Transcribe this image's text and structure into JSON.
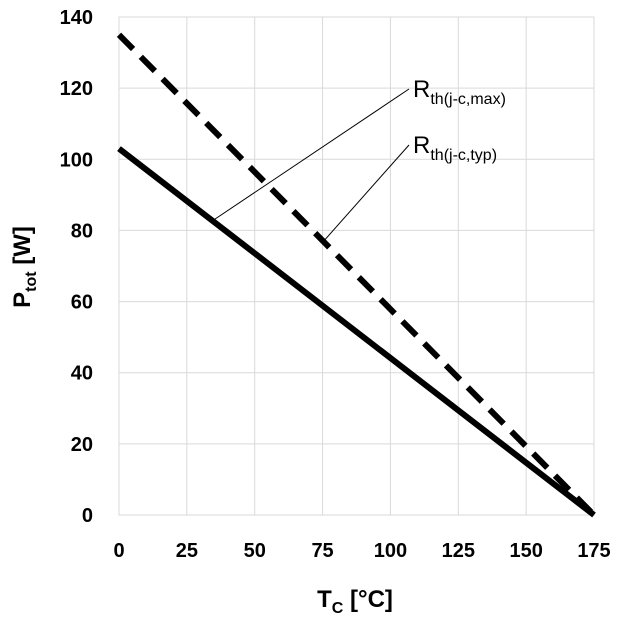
{
  "chart_data": {
    "type": "line",
    "x_axis": {
      "label_main": "T",
      "label_sub": "C",
      "label_unit": " [°C]",
      "range": [
        0,
        175
      ],
      "ticks": [
        0,
        25,
        50,
        75,
        100,
        125,
        150,
        175
      ]
    },
    "y_axis": {
      "label_main": "P",
      "label_sub": "tot",
      "label_unit": " [W]",
      "range": [
        0,
        140
      ],
      "ticks": [
        0,
        20,
        40,
        60,
        80,
        100,
        120,
        140
      ]
    },
    "grid": true,
    "series": [
      {
        "id": "max",
        "style": "dashed",
        "color": "#000000",
        "x": [
          0,
          175
        ],
        "y": [
          135,
          0
        ]
      },
      {
        "id": "typ",
        "style": "solid",
        "color": "#000000",
        "x": [
          0,
          175
        ],
        "y": [
          103,
          0
        ]
      }
    ],
    "annotations": [
      {
        "series": "max",
        "label_main": "R",
        "label_sub": "th(j-c,max)",
        "point": [
          35,
          83
        ]
      },
      {
        "series": "typ",
        "label_main": "R",
        "label_sub": "th(j-c,typ)",
        "point": [
          76,
          77.5
        ]
      }
    ]
  }
}
